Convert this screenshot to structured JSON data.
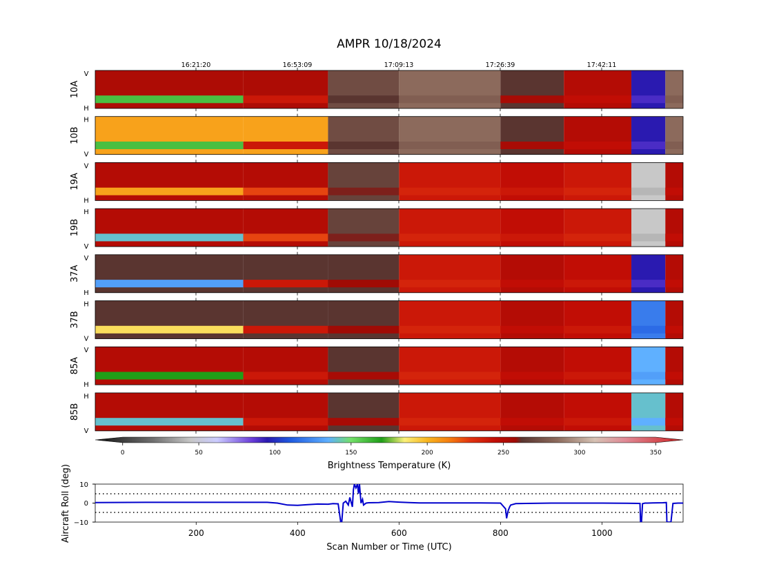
{
  "title": "AMPR 10/18/2024",
  "time_ticks": [
    "16:21:20",
    "16:53:09",
    "17:09:13",
    "17:26:39",
    "17:42:11"
  ],
  "panels": [
    {
      "label": "10A",
      "top": "V",
      "bottom": "H"
    },
    {
      "label": "10B",
      "top": "H",
      "bottom": "V"
    },
    {
      "label": "19A",
      "top": "V",
      "bottom": "H"
    },
    {
      "label": "19B",
      "top": "H",
      "bottom": "V"
    },
    {
      "label": "37A",
      "top": "V",
      "bottom": "H"
    },
    {
      "label": "37B",
      "top": "H",
      "bottom": "V"
    },
    {
      "label": "85A",
      "top": "V",
      "bottom": "H"
    },
    {
      "label": "85B",
      "top": "H",
      "bottom": "V"
    }
  ],
  "colorbar": {
    "label": "Brightness Temperature (K)",
    "ticks": [
      "0",
      "50",
      "100",
      "150",
      "200",
      "250",
      "300",
      "350"
    ],
    "range": [
      -18,
      368
    ]
  },
  "chart_data": [
    {
      "type": "heatmap",
      "title": "AMPR 10/18/2024",
      "xlabel": "",
      "ylabel": "",
      "x_range": [
        1,
        1160
      ],
      "value_range": [
        -18,
        368
      ],
      "colormap_stops": [
        {
          "value": -18,
          "color": "#111111"
        },
        {
          "value": 20,
          "color": "#707070"
        },
        {
          "value": 45,
          "color": "#c8c8c8"
        },
        {
          "value": 62,
          "color": "#ccccff"
        },
        {
          "value": 85,
          "color": "#6a3dd9"
        },
        {
          "value": 95,
          "color": "#2a1ab0"
        },
        {
          "value": 110,
          "color": "#1f5ae0"
        },
        {
          "value": 135,
          "color": "#5fb0ff"
        },
        {
          "value": 150,
          "color": "#74e06a"
        },
        {
          "value": 170,
          "color": "#1f9e18"
        },
        {
          "value": 185,
          "color": "#fbf07a"
        },
        {
          "value": 200,
          "color": "#f9b620"
        },
        {
          "value": 215,
          "color": "#f57b10"
        },
        {
          "value": 228,
          "color": "#e23410"
        },
        {
          "value": 245,
          "color": "#c10d05"
        },
        {
          "value": 258,
          "color": "#a00b05"
        },
        {
          "value": 262,
          "color": "#5a3530"
        },
        {
          "value": 285,
          "color": "#8c6a5c"
        },
        {
          "value": 310,
          "color": "#d6c2b4"
        },
        {
          "value": 330,
          "color": "#e08a96"
        },
        {
          "value": 368,
          "color": "#cc2020"
        }
      ],
      "series": [
        {
          "name": "10A",
          "values": [
            [
              0,
              253,
              160
            ],
            [
              293,
              253,
              240
            ],
            [
              460,
              272,
              262
            ],
            [
              600,
              285,
              280
            ],
            [
              800,
              262,
              255
            ],
            [
              925,
              250,
              245
            ],
            [
              1058,
              95,
              90
            ],
            [
              1125,
              285,
              280
            ]
          ]
        },
        {
          "name": "10B",
          "values": [
            [
              0,
              205,
              160
            ],
            [
              293,
              205,
              240
            ],
            [
              460,
              272,
              262
            ],
            [
              600,
              285,
              280
            ],
            [
              800,
              262,
              255
            ],
            [
              925,
              250,
              245
            ],
            [
              1058,
              95,
              90
            ],
            [
              1125,
              285,
              280
            ]
          ]
        },
        {
          "name": "19A",
          "values": [
            [
              0,
              250,
              205
            ],
            [
              293,
              250,
              225
            ],
            [
              460,
              268,
              260
            ],
            [
              600,
              240,
              235
            ],
            [
              800,
              245,
              240
            ],
            [
              925,
              240,
              235
            ],
            [
              1058,
              45,
              40
            ],
            [
              1125,
              250,
              245
            ]
          ]
        },
        {
          "name": "19B",
          "values": [
            [
              0,
              250,
              140
            ],
            [
              293,
              250,
              225
            ],
            [
              460,
              268,
              260
            ],
            [
              600,
              240,
              235
            ],
            [
              800,
              245,
              240
            ],
            [
              925,
              240,
              235
            ],
            [
              1058,
              45,
              40
            ],
            [
              1125,
              250,
              245
            ]
          ]
        },
        {
          "name": "37A",
          "values": [
            [
              0,
              262,
              130
            ],
            [
              293,
              262,
              240
            ],
            [
              460,
              262,
              258
            ],
            [
              600,
              240,
              235
            ],
            [
              800,
              250,
              245
            ],
            [
              925,
              245,
              240
            ],
            [
              1058,
              95,
              90
            ],
            [
              1125,
              250,
              245
            ]
          ]
        },
        {
          "name": "37B",
          "values": [
            [
              0,
              262,
              190
            ],
            [
              293,
              262,
              240
            ],
            [
              460,
              262,
              258
            ],
            [
              600,
              240,
              235
            ],
            [
              800,
              250,
              245
            ],
            [
              925,
              245,
              240
            ],
            [
              1058,
              120,
              115
            ],
            [
              1125,
              250,
              245
            ]
          ]
        },
        {
          "name": "85A",
          "values": [
            [
              0,
              250,
              170
            ],
            [
              293,
              250,
              240
            ],
            [
              460,
              262,
              255
            ],
            [
              600,
              240,
              235
            ],
            [
              800,
              250,
              245
            ],
            [
              925,
              245,
              240
            ],
            [
              1058,
              135,
              130
            ],
            [
              1125,
              250,
              245
            ]
          ]
        },
        {
          "name": "85B",
          "values": [
            [
              0,
              250,
              140
            ],
            [
              293,
              250,
              240
            ],
            [
              460,
              262,
              255
            ],
            [
              600,
              240,
              235
            ],
            [
              800,
              250,
              245
            ],
            [
              925,
              245,
              240
            ],
            [
              1058,
              140,
              135
            ],
            [
              1125,
              250,
              245
            ]
          ]
        }
      ]
    },
    {
      "type": "line",
      "xlabel": "Scan Number or Time (UTC)",
      "ylabel": "Aircraft Roll (deg)",
      "xlim": [
        1,
        1160
      ],
      "ylim": [
        -10,
        10
      ],
      "xticks": [
        200,
        400,
        600,
        800,
        1000
      ],
      "yticks": [
        -10,
        0,
        10
      ],
      "reference_lines": [
        5,
        -5
      ],
      "series": [
        {
          "color": "#0000cc",
          "x": [
            1,
            100,
            200,
            300,
            340,
            360,
            380,
            400,
            420,
            440,
            460,
            470,
            480,
            485,
            487,
            490,
            495,
            500,
            503,
            505,
            508,
            510,
            512,
            515,
            518,
            520,
            522,
            525,
            528,
            530,
            535,
            540,
            560,
            580,
            600,
            620,
            640,
            700,
            760,
            800,
            810,
            812,
            815,
            818,
            820,
            830,
            850,
            900,
            1000,
            1050,
            1075,
            1076,
            1078,
            1080,
            1085,
            1090,
            1100,
            1120,
            1127,
            1128,
            1132,
            1136,
            1140,
            1150,
            1160
          ],
          "y": [
            0.3,
            0.4,
            0.4,
            0.4,
            0.4,
            0,
            -1,
            -1.2,
            -0.8,
            -0.5,
            -0.6,
            -0.3,
            -0.4,
            -10,
            -10,
            0,
            1,
            -1,
            3,
            1,
            -2,
            7,
            10,
            8,
            10,
            5,
            10,
            0,
            2,
            -1,
            0,
            0.2,
            0.3,
            0.8,
            0.5,
            0.3,
            0.1,
            0.1,
            0.1,
            0,
            -3,
            -8,
            -4,
            -2,
            -1,
            -0.3,
            -0.2,
            0,
            0,
            -0.1,
            -0.2,
            -10,
            -10,
            -0.3,
            0,
            0,
            0.1,
            0.2,
            0.3,
            -10,
            -10,
            -10,
            -0.2,
            0,
            0
          ]
        }
      ]
    }
  ],
  "roll_axis": {
    "ylabel": "Aircraft Roll (deg)",
    "xlabel": "Scan Number or Time (UTC)",
    "yticks": [
      "10",
      "0",
      "−10"
    ],
    "xticks": [
      "200",
      "400",
      "600",
      "800",
      "1000"
    ]
  }
}
